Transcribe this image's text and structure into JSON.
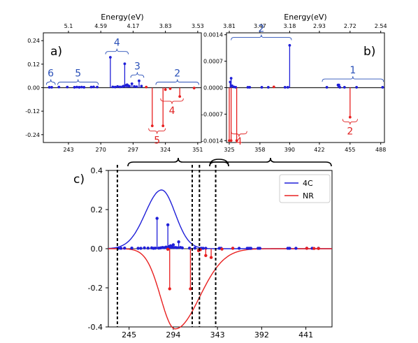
{
  "colors": {
    "blue": "#1f1fd8",
    "red": "#e82020",
    "anno_blue": "#2a50b8",
    "anno_red": "#e02020"
  },
  "chart_data": [
    {
      "type": "stem",
      "panel_label": "a)",
      "top_axis_label": "Energy(eV)",
      "top_ticks": [
        "5.1",
        "4.59",
        "4.17",
        "3.83",
        "3.53"
      ],
      "top_tick_positions": [
        243,
        270,
        297,
        324,
        351
      ],
      "xlim": [
        222,
        354
      ],
      "ylim": [
        -0.28,
        0.28
      ],
      "xticks": [
        243,
        270,
        297,
        324,
        351
      ],
      "yticks": [
        0.24,
        0.12,
        0.0,
        -0.12,
        -0.24
      ],
      "ytick_labels": [
        "0.24",
        "0.12",
        "0.00",
        "-0.12",
        "-0.24"
      ],
      "series": [
        {
          "color": "blue",
          "x": [
            227,
            229,
            235,
            242,
            248,
            250,
            252,
            254,
            256,
            262,
            264,
            267,
            278,
            280,
            282,
            284,
            286,
            288,
            289,
            290,
            291,
            292,
            293,
            294,
            296,
            298,
            300,
            302,
            304
          ],
          "y": [
            0.002,
            0.002,
            0.003,
            0.003,
            0.002,
            0.003,
            0.002,
            0.003,
            0.002,
            0.003,
            0.004,
            0.003,
            0.155,
            0.004,
            0.003,
            0.006,
            0.004,
            0.005,
            0.008,
            0.122,
            0.012,
            0.015,
            0.01,
            0.007,
            0.02,
            0.006,
            0.005,
            0.035,
            0.008
          ]
        },
        {
          "color": "red",
          "x": [
            308,
            313,
            322,
            324,
            328,
            336,
            348
          ],
          "y": [
            0.003,
            -0.195,
            -0.195,
            -0.01,
            -0.005,
            -0.045,
            -0.002
          ]
        }
      ],
      "annotations": [
        {
          "text": "6",
          "color": "blue"
        },
        {
          "text": "5",
          "color": "blue"
        },
        {
          "text": "4",
          "color": "blue"
        },
        {
          "text": "3",
          "color": "blue"
        },
        {
          "text": "2",
          "color": "blue"
        },
        {
          "text": "4",
          "color": "red"
        },
        {
          "text": "5",
          "color": "red"
        }
      ]
    },
    {
      "type": "stem",
      "panel_label": "b)",
      "top_axis_label": "Energy(eV)",
      "top_ticks": [
        "3.81",
        "3.47",
        "3.18",
        "2.93",
        "2.72",
        "2.54"
      ],
      "top_tick_positions": [
        325,
        358,
        390,
        422,
        455,
        488
      ],
      "xlim": [
        322,
        492
      ],
      "ylim": [
        -0.00145,
        0.00145
      ],
      "xticks": [
        325,
        358,
        390,
        422,
        455,
        488
      ],
      "yticks": [
        0.0014,
        0.0007,
        0.0,
        -0.0007,
        -0.0014
      ],
      "ytick_labels": [
        "0.0014",
        "0.0007",
        "0.0000",
        "-0.0007",
        "-0.0014"
      ],
      "series": [
        {
          "color": "blue",
          "x": [
            326,
            327,
            328,
            330,
            332,
            345,
            347,
            360,
            367,
            385,
            388,
            390,
            430,
            442,
            443,
            444,
            449,
            462,
            490
          ],
          "y": [
            0.00015,
            0.00025,
            5e-05,
            2e-05,
            1e-05,
            1e-05,
            1e-05,
            1e-05,
            1e-05,
            1e-05,
            1e-05,
            0.00112,
            1e-05,
            7e-05,
            7e-05,
            1e-05,
            1e-05,
            1e-05,
            1e-05
          ]
        },
        {
          "color": "red",
          "x": [
            325,
            327,
            333,
            373,
            455
          ],
          "y": [
            -0.0014,
            -0.0014,
            -0.0014,
            2e-05,
            -0.00078
          ]
        }
      ],
      "annotations": [
        {
          "text": "2",
          "color": "blue"
        },
        {
          "text": "1",
          "color": "blue"
        },
        {
          "text": "4",
          "color": "red"
        },
        {
          "text": "2",
          "color": "red"
        }
      ]
    },
    {
      "type": "line+stem",
      "panel_label": "c)",
      "xlim": [
        222,
        470
      ],
      "ylim": [
        -0.4,
        0.4
      ],
      "xticks": [
        245,
        294,
        343,
        392,
        441
      ],
      "yticks": [
        0.4,
        0.2,
        0.0,
        -0.2,
        -0.4
      ],
      "ytick_labels": [
        "0.4",
        "0.2",
        "0.0",
        "-0.2",
        "-0.4"
      ],
      "legend": {
        "position": "top-right",
        "entries": [
          {
            "name": "4C",
            "color": "blue"
          },
          {
            "name": "NR",
            "color": "red"
          }
        ]
      },
      "series": [
        {
          "name": "4C",
          "kind": "line",
          "color": "blue",
          "center": 281,
          "amplitude": 0.3,
          "sigma_left": 18,
          "sigma_right": 15
        },
        {
          "name": "NR",
          "kind": "line",
          "color": "red",
          "center": 296,
          "amplitude": -0.41,
          "sigma_left": 16,
          "sigma_right": 27
        },
        {
          "kind": "stem",
          "color": "blue",
          "x": [
            233,
            236,
            240,
            248,
            255,
            258,
            262,
            266,
            270,
            272,
            274,
            276,
            278,
            280,
            282,
            284,
            286,
            288,
            289,
            290,
            291,
            292,
            293,
            294,
            296,
            298,
            300,
            302,
            304,
            312,
            318,
            325,
            327,
            330,
            345,
            347,
            360,
            367,
            376,
            378,
            380,
            388,
            390,
            421,
            423,
            430,
            442,
            448,
            455
          ],
          "y": [
            0.002,
            0.002,
            0.003,
            0.003,
            0.002,
            0.002,
            0.004,
            0.003,
            0.004,
            0.002,
            0.003,
            0.155,
            0.003,
            0.004,
            0.006,
            0.005,
            0.008,
            0.122,
            0.01,
            0.012,
            0.015,
            0.01,
            0.007,
            0.02,
            0.006,
            0.005,
            0.035,
            0.006,
            0.004,
            0.003,
            0.003,
            0.002,
            0.002,
            0.002,
            0.002,
            0.002,
            0.002,
            0.002,
            0.002,
            0.002,
            0.002,
            0.002,
            0.002,
            0.002,
            0.002,
            0.002,
            0.002,
            0.002,
            0.002
          ]
        },
        {
          "kind": "stem",
          "color": "red",
          "x": [
            288,
            290,
            313,
            322,
            324,
            330,
            336,
            348,
            360,
            442,
            450,
            455
          ],
          "y": [
            -0.003,
            -0.205,
            -0.205,
            -0.01,
            -0.005,
            -0.035,
            -0.045,
            -0.002,
            0.002,
            0.002,
            0.001,
            0.001
          ]
        }
      ],
      "dashed_lines_x": [
        232,
        315,
        323,
        341
      ],
      "top_braces": "overlapping brackets mapping panels a) and b) to their energy ranges"
    }
  ]
}
